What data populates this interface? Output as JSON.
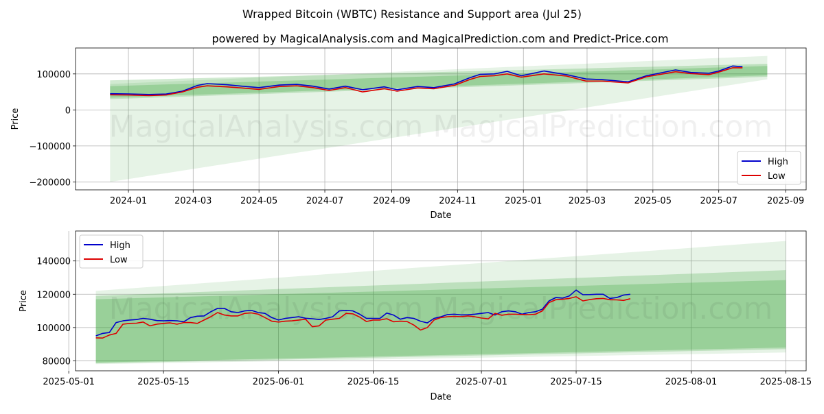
{
  "title": "Wrapped Bitcoin (WBTC) Resistance and Support area (Jul 25)",
  "subtitle": "powered by MagicalAnalysis.com and MagicalPrediction.com and Predict-Price.com",
  "watermark": "MagicalAnalysis.com    MagicalPrediction.com",
  "colors": {
    "high": "#0000cc",
    "low": "#dd0000",
    "band": "#2e9e2e"
  },
  "chart_data": [
    {
      "type": "line",
      "xlabel": "Date",
      "ylabel": "Price",
      "xlim": [
        "2023-11-13",
        "2025-09-20"
      ],
      "ylim": [
        -222000,
        172000
      ],
      "x_ticks": [
        "2024-01",
        "2024-03",
        "2024-05",
        "2024-07",
        "2024-09",
        "2024-11",
        "2025-01",
        "2025-03",
        "2025-05",
        "2025-07",
        "2025-09"
      ],
      "y_ticks": [
        -200000,
        -100000,
        0,
        100000
      ],
      "y_tick_labels": [
        "−200000",
        "−100000",
        "0",
        "100000"
      ],
      "legend": "bottom-right",
      "grid": true,
      "series": [
        {
          "name": "High",
          "points": [
            [
              "2023-12-15",
              45000
            ],
            [
              "2024-01-01",
              44500
            ],
            [
              "2024-01-20",
              43000
            ],
            [
              "2024-02-05",
              44000
            ],
            [
              "2024-02-20",
              52000
            ],
            [
              "2024-03-05",
              68000
            ],
            [
              "2024-03-14",
              73000
            ],
            [
              "2024-04-01",
              70000
            ],
            [
              "2024-04-15",
              66000
            ],
            [
              "2024-05-01",
              62000
            ],
            [
              "2024-05-20",
              69000
            ],
            [
              "2024-06-05",
              71000
            ],
            [
              "2024-06-20",
              66000
            ],
            [
              "2024-07-05",
              58000
            ],
            [
              "2024-07-20",
              66000
            ],
            [
              "2024-08-05",
              56000
            ],
            [
              "2024-08-25",
              64000
            ],
            [
              "2024-09-06",
              56000
            ],
            [
              "2024-09-25",
              65000
            ],
            [
              "2024-10-10",
              62000
            ],
            [
              "2024-10-29",
              72000
            ],
            [
              "2024-11-12",
              89000
            ],
            [
              "2024-11-22",
              99000
            ],
            [
              "2024-12-05",
              100000
            ],
            [
              "2024-12-17",
              107000
            ],
            [
              "2024-12-30",
              95000
            ],
            [
              "2025-01-20",
              108000
            ],
            [
              "2025-02-10",
              98000
            ],
            [
              "2025-02-28",
              86000
            ],
            [
              "2025-03-15",
              84000
            ],
            [
              "2025-04-08",
              78000
            ],
            [
              "2025-04-25",
              95000
            ],
            [
              "2025-05-22",
              111000
            ],
            [
              "2025-06-05",
              104000
            ],
            [
              "2025-06-22",
              102000
            ],
            [
              "2025-07-01",
              108000
            ],
            [
              "2025-07-14",
              122000
            ],
            [
              "2025-07-23",
              120000
            ]
          ]
        },
        {
          "name": "Low",
          "points": [
            [
              "2023-12-15",
              42000
            ],
            [
              "2024-01-01",
              41500
            ],
            [
              "2024-01-20",
              40000
            ],
            [
              "2024-02-05",
              41500
            ],
            [
              "2024-02-20",
              50000
            ],
            [
              "2024-03-05",
              63000
            ],
            [
              "2024-03-14",
              67000
            ],
            [
              "2024-04-01",
              64000
            ],
            [
              "2024-04-15",
              61000
            ],
            [
              "2024-05-01",
              57000
            ],
            [
              "2024-05-20",
              65000
            ],
            [
              "2024-06-05",
              67000
            ],
            [
              "2024-06-20",
              62000
            ],
            [
              "2024-07-05",
              54000
            ],
            [
              "2024-07-20",
              62000
            ],
            [
              "2024-08-05",
              50000
            ],
            [
              "2024-08-25",
              59000
            ],
            [
              "2024-09-06",
              52000
            ],
            [
              "2024-09-25",
              61000
            ],
            [
              "2024-10-10",
              59000
            ],
            [
              "2024-10-29",
              68000
            ],
            [
              "2024-11-12",
              84000
            ],
            [
              "2024-11-22",
              93000
            ],
            [
              "2024-12-05",
              95000
            ],
            [
              "2024-12-17",
              100000
            ],
            [
              "2024-12-30",
              91000
            ],
            [
              "2025-01-20",
              100000
            ],
            [
              "2025-02-10",
              94000
            ],
            [
              "2025-02-28",
              80000
            ],
            [
              "2025-03-15",
              80000
            ],
            [
              "2025-04-08",
              75000
            ],
            [
              "2025-04-25",
              92000
            ],
            [
              "2025-05-22",
              106000
            ],
            [
              "2025-06-05",
              101000
            ],
            [
              "2025-06-22",
              98000
            ],
            [
              "2025-07-01",
              105000
            ],
            [
              "2025-07-14",
              117000
            ],
            [
              "2025-07-23",
              117000
            ]
          ]
        }
      ],
      "bands": [
        {
          "x": [
            "2023-12-15",
            "2025-08-15"
          ],
          "top": [
            72000,
            150000
          ],
          "bottom": [
            -200000,
            85000
          ],
          "opacity": 0.12
        },
        {
          "x": [
            "2023-12-15",
            "2025-08-15"
          ],
          "top": [
            82000,
            128000
          ],
          "bottom": [
            30000,
            92000
          ],
          "opacity": 0.22
        },
        {
          "x": [
            "2023-12-15",
            "2025-08-15"
          ],
          "top": [
            66000,
            122000
          ],
          "bottom": [
            34000,
            96000
          ],
          "opacity": 0.25
        }
      ]
    },
    {
      "type": "line",
      "xlabel": "Date",
      "ylabel": "Price",
      "xlim": [
        "2025-05-02",
        "2025-08-18"
      ],
      "ylim": [
        74000,
        158000
      ],
      "x_ticks": [
        "2025-05-01",
        "2025-05-15",
        "2025-06-01",
        "2025-06-15",
        "2025-07-01",
        "2025-07-15",
        "2025-08-01",
        "2025-08-15"
      ],
      "y_ticks": [
        80000,
        100000,
        120000,
        140000
      ],
      "y_tick_labels": [
        "80000",
        "100000",
        "120000",
        "140000"
      ],
      "legend": "top-left",
      "grid": true,
      "series": [
        {
          "name": "High",
          "x": [
            "2025-05-05",
            "2025-05-06",
            "2025-05-07",
            "2025-05-08",
            "2025-05-09",
            "2025-05-10",
            "2025-05-11",
            "2025-05-12",
            "2025-05-13",
            "2025-05-14",
            "2025-05-15",
            "2025-05-16",
            "2025-05-17",
            "2025-05-18",
            "2025-05-19",
            "2025-05-20",
            "2025-05-21",
            "2025-05-22",
            "2025-05-23",
            "2025-05-24",
            "2025-05-25",
            "2025-05-26",
            "2025-05-27",
            "2025-05-28",
            "2025-05-29",
            "2025-05-30",
            "2025-05-31",
            "2025-06-01",
            "2025-06-02",
            "2025-06-03",
            "2025-06-04",
            "2025-06-05",
            "2025-06-06",
            "2025-06-07",
            "2025-06-08",
            "2025-06-09",
            "2025-06-10",
            "2025-06-11",
            "2025-06-12",
            "2025-06-13",
            "2025-06-14",
            "2025-06-15",
            "2025-06-16",
            "2025-06-17",
            "2025-06-18",
            "2025-06-19",
            "2025-06-20",
            "2025-06-21",
            "2025-06-22",
            "2025-06-23",
            "2025-06-24",
            "2025-06-25",
            "2025-06-26",
            "2025-06-27",
            "2025-06-28",
            "2025-06-29",
            "2025-06-30",
            "2025-07-01",
            "2025-07-02",
            "2025-07-03",
            "2025-07-04",
            "2025-07-05",
            "2025-07-06",
            "2025-07-07",
            "2025-07-08",
            "2025-07-09",
            "2025-07-10",
            "2025-07-11",
            "2025-07-12",
            "2025-07-13",
            "2025-07-14",
            "2025-07-15",
            "2025-07-16",
            "2025-07-17",
            "2025-07-18",
            "2025-07-19",
            "2025-07-20",
            "2025-07-21",
            "2025-07-22",
            "2025-07-23"
          ],
          "values": [
            95000,
            96500,
            97000,
            103000,
            104000,
            104500,
            104800,
            105500,
            105000,
            104200,
            104000,
            104200,
            104000,
            103500,
            106000,
            106800,
            107000,
            109500,
            111500,
            111500,
            109500,
            109000,
            110000,
            110300,
            109000,
            108500,
            106000,
            104500,
            105500,
            106000,
            106500,
            105600,
            105300,
            104800,
            105500,
            106500,
            110000,
            110300,
            110000,
            108000,
            105500,
            105500,
            105500,
            108700,
            107500,
            105000,
            106000,
            105500,
            103800,
            102800,
            105500,
            106500,
            107800,
            108000,
            107600,
            107700,
            108000,
            108500,
            109000,
            107500,
            109500,
            110000,
            109500,
            108000,
            109000,
            109500,
            111000,
            116000,
            118000,
            117700,
            119000,
            122500,
            119700,
            119800,
            120000,
            120000,
            117500,
            118000,
            119500,
            120000
          ]
        },
        {
          "name": "Low",
          "x": [
            "2025-05-05",
            "2025-05-06",
            "2025-05-07",
            "2025-05-08",
            "2025-05-09",
            "2025-05-10",
            "2025-05-11",
            "2025-05-12",
            "2025-05-13",
            "2025-05-14",
            "2025-05-15",
            "2025-05-16",
            "2025-05-17",
            "2025-05-18",
            "2025-05-19",
            "2025-05-20",
            "2025-05-21",
            "2025-05-22",
            "2025-05-23",
            "2025-05-24",
            "2025-05-25",
            "2025-05-26",
            "2025-05-27",
            "2025-05-28",
            "2025-05-29",
            "2025-05-30",
            "2025-05-31",
            "2025-06-01",
            "2025-06-02",
            "2025-06-03",
            "2025-06-04",
            "2025-06-05",
            "2025-06-06",
            "2025-06-07",
            "2025-06-08",
            "2025-06-09",
            "2025-06-10",
            "2025-06-11",
            "2025-06-12",
            "2025-06-13",
            "2025-06-14",
            "2025-06-15",
            "2025-06-16",
            "2025-06-17",
            "2025-06-18",
            "2025-06-19",
            "2025-06-20",
            "2025-06-21",
            "2025-06-22",
            "2025-06-23",
            "2025-06-24",
            "2025-06-25",
            "2025-06-26",
            "2025-06-27",
            "2025-06-28",
            "2025-06-29",
            "2025-06-30",
            "2025-07-01",
            "2025-07-02",
            "2025-07-03",
            "2025-07-04",
            "2025-07-05",
            "2025-07-06",
            "2025-07-07",
            "2025-07-08",
            "2025-07-09",
            "2025-07-10",
            "2025-07-11",
            "2025-07-12",
            "2025-07-13",
            "2025-07-14",
            "2025-07-15",
            "2025-07-16",
            "2025-07-17",
            "2025-07-18",
            "2025-07-19",
            "2025-07-20",
            "2025-07-21",
            "2025-07-22",
            "2025-07-23"
          ],
          "values": [
            93800,
            93700,
            95500,
            96500,
            102000,
            102500,
            102600,
            103300,
            101000,
            102000,
            102500,
            102800,
            102000,
            103000,
            103000,
            102500,
            104500,
            106500,
            109000,
            107500,
            107000,
            107000,
            108500,
            108800,
            108000,
            106000,
            103800,
            103300,
            103800,
            104000,
            104500,
            105000,
            100500,
            101000,
            104500,
            105000,
            105500,
            108500,
            108200,
            106300,
            103600,
            104500,
            104500,
            105300,
            103500,
            103800,
            103600,
            101500,
            98500,
            100000,
            104500,
            106000,
            106500,
            106700,
            106500,
            107000,
            106500,
            105700,
            105200,
            108500,
            107400,
            108000,
            108000,
            107800,
            107700,
            108000,
            110000,
            115000,
            116700,
            117000,
            117500,
            118500,
            116000,
            116800,
            117300,
            117500,
            116700,
            116600,
            116300,
            117300
          ]
        }
      ],
      "bands": [
        {
          "x": [
            "2025-05-05",
            "2025-08-15"
          ],
          "top": [
            122000,
            152000
          ],
          "bottom": [
            78000,
            85000
          ],
          "opacity": 0.12
        },
        {
          "x": [
            "2025-05-05",
            "2025-08-15"
          ],
          "top": [
            119000,
            134500
          ],
          "bottom": [
            78500,
            87000
          ],
          "opacity": 0.22
        },
        {
          "x": [
            "2025-05-05",
            "2025-08-15"
          ],
          "top": [
            117000,
            128500
          ],
          "bottom": [
            79000,
            88000
          ],
          "opacity": 0.25
        }
      ]
    }
  ]
}
